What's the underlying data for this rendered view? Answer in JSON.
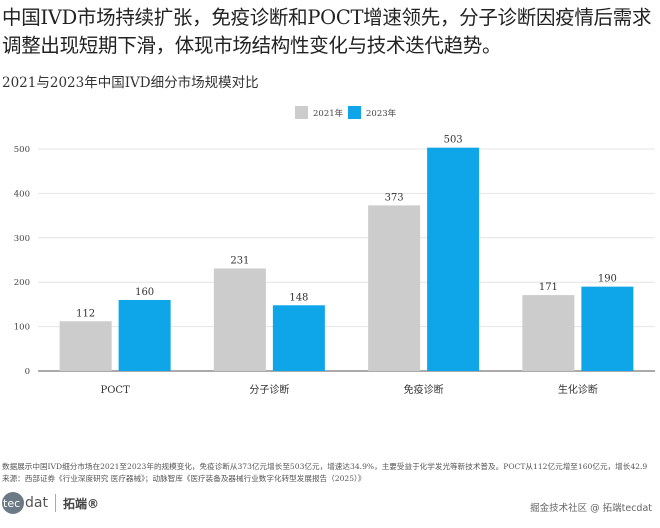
{
  "headline": "中国IVD市场持续扩张，免疫诊断和POCT增速领先，分子诊断因疫情后需求调整出现短期下滑，体现市场结构性变化与技术迭代趋势。",
  "chart_data": {
    "type": "bar",
    "title": "2021与2023年中国IVD细分市场规模对比",
    "categories": [
      "POCT",
      "分子诊断",
      "免疫诊断",
      "生化诊断"
    ],
    "series": [
      {
        "name": "2021年",
        "color": "#cccccc",
        "values": [
          112,
          231,
          373,
          171
        ]
      },
      {
        "name": "2023年",
        "color": "#0ea5e9",
        "values": [
          160,
          148,
          503,
          190
        ]
      }
    ],
    "yticks": [
      0,
      100,
      200,
      300,
      400,
      500
    ],
    "ylim": [
      0,
      500
    ],
    "xlabel": "",
    "ylabel": "",
    "grid": true,
    "legend_position": "top-center"
  },
  "footer": {
    "note": "数据展示中国IVD细分市场在2021至2023年的规模变化，免疫诊断从373亿元增长至503亿元，增速达34.9%，主要受益于化学发光等新技术普及。POCT从112亿元增至160亿元，增长42.9",
    "source": "来源：西部证券《行业深度研究 医疗器械》；动脉智库《医疗装备及器械行业数字化转型发展报告（2025）》",
    "logo_left": "tec",
    "logo_right": "dat",
    "logo_cn": "拓端®",
    "watermark": "掘金技术社区 @ 拓端tecdat"
  }
}
